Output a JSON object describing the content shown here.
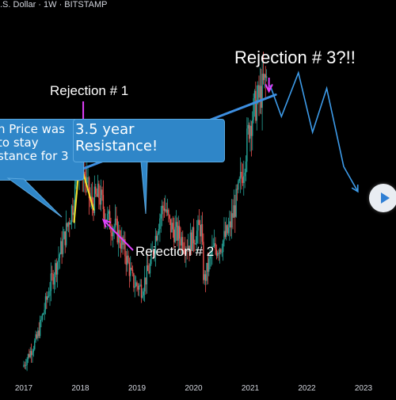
{
  "header": {
    "symbol_text": ".S. Dollar · 1W · BITSTAMP"
  },
  "annotations": {
    "rejection_1": "Rejection # 1",
    "rejection_2": "Rejection # 2",
    "rejection_3": "Rejection # 3?!!"
  },
  "callouts": {
    "left_line1": "n   Price was",
    "left_line2": "to stay",
    "left_line3": "stance for 3",
    "right_line1": "3.5 year",
    "right_line2": "Resistance!"
  },
  "colors": {
    "up": "#26a69a",
    "down": "#ef5350",
    "resistance": "#3d8ee0",
    "projection": "#3d9be9",
    "magenta": "#e040fb",
    "yellow": "#f5e02b",
    "callout_bg": "#2f86c8"
  },
  "icons": {
    "play": "play-icon"
  },
  "chart_data": {
    "type": "candlestick",
    "timeframe": "1W",
    "exchange": "BITSTAMP",
    "x_ticks": [
      "2017",
      "2018",
      "2019",
      "2020",
      "2021",
      "2022",
      "2023"
    ],
    "x_range": [
      2016.95,
      2023.35
    ],
    "y_range": [
      0,
      100
    ],
    "y_scale": "log",
    "price_path": [
      [
        2017.0,
        3
      ],
      [
        2017.25,
        12
      ],
      [
        2017.5,
        30
      ],
      [
        2017.75,
        45
      ],
      [
        2017.9,
        56
      ],
      [
        2018.0,
        70
      ],
      [
        2018.1,
        64
      ],
      [
        2018.2,
        55
      ],
      [
        2018.35,
        58
      ],
      [
        2018.5,
        50
      ],
      [
        2018.65,
        47
      ],
      [
        2018.8,
        40
      ],
      [
        2018.95,
        30
      ],
      [
        2019.1,
        28
      ],
      [
        2019.25,
        35
      ],
      [
        2019.4,
        50
      ],
      [
        2019.5,
        55
      ],
      [
        2019.6,
        48
      ],
      [
        2019.75,
        45
      ],
      [
        2019.9,
        42
      ],
      [
        2020.0,
        44
      ],
      [
        2020.15,
        48
      ],
      [
        2020.2,
        30
      ],
      [
        2020.35,
        40
      ],
      [
        2020.5,
        42
      ],
      [
        2020.65,
        47
      ],
      [
        2020.8,
        58
      ],
      [
        2020.9,
        67
      ],
      [
        2021.0,
        80
      ],
      [
        2021.1,
        86
      ],
      [
        2021.2,
        90
      ],
      [
        2021.3,
        95
      ]
    ],
    "resistance_line": [
      [
        2018.0,
        66
      ],
      [
        2021.45,
        90
      ]
    ],
    "projection_path": [
      [
        2021.35,
        93
      ],
      [
        2021.55,
        83
      ],
      [
        2021.85,
        97
      ],
      [
        2022.1,
        78
      ],
      [
        2022.35,
        92
      ],
      [
        2022.65,
        67
      ],
      [
        2022.9,
        59
      ]
    ]
  }
}
